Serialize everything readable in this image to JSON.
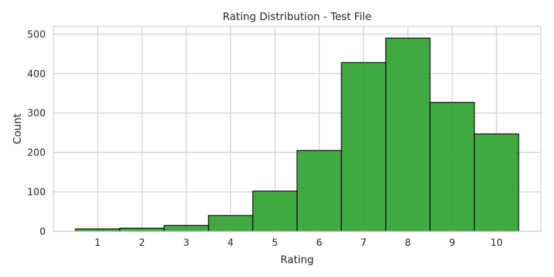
{
  "chart_data": {
    "type": "bar",
    "title": "Rating Distribution - Test File",
    "xlabel": "Rating",
    "ylabel": "Count",
    "categories": [
      "1",
      "2",
      "3",
      "4",
      "5",
      "6",
      "7",
      "8",
      "9",
      "10"
    ],
    "values": [
      6,
      8,
      15,
      40,
      102,
      205,
      428,
      490,
      327,
      247
    ],
    "ylim": [
      0,
      520
    ],
    "yticks": [
      0,
      100,
      200,
      300,
      400,
      500
    ],
    "grid": true,
    "legend": "none",
    "colors": {
      "bar_fill": "#2ca02c",
      "bar_edge": "#000000",
      "grid": "#cccccc",
      "frame": "#cccccc",
      "text": "#262626",
      "background": "#ffffff"
    }
  }
}
